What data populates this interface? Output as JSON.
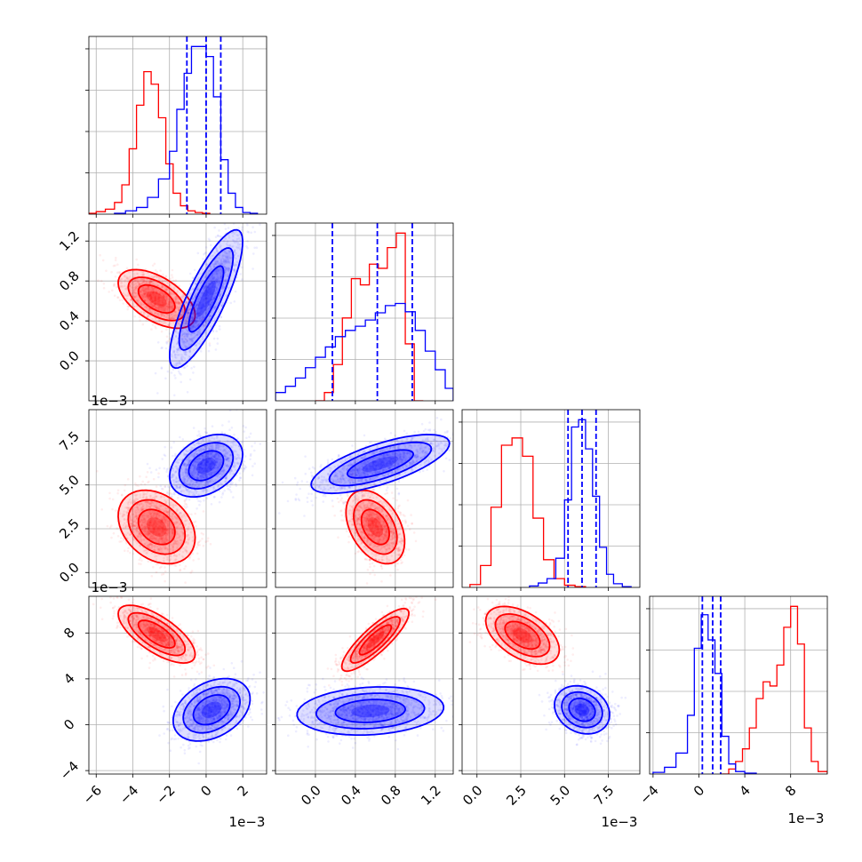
{
  "colors": {
    "series_a": "#ff0000",
    "series_b": "#0000ff"
  },
  "chart_data": {
    "type": "scatter",
    "subtype": "corner-plot",
    "grid": true,
    "offset_labels": {
      "col0_x": "1e−3",
      "col2_x": "1e−3",
      "col3_x": "1e−3",
      "row1_y": "1e−3",
      "row2_y": "1e−3"
    },
    "ranges": [
      [
        -6.4,
        3.3
      ],
      [
        -0.4,
        1.38
      ],
      [
        -0.85,
        9.3
      ],
      [
        -4.3,
        11.2
      ]
    ],
    "tick_labels": {
      "col0_x": [
        {
          "v": -6,
          "t": "−6"
        },
        {
          "v": -4,
          "t": "−4"
        },
        {
          "v": -2,
          "t": "−2"
        },
        {
          "v": 0,
          "t": "0"
        },
        {
          "v": 2,
          "t": "2"
        }
      ],
      "col1_x": [
        {
          "v": 0.0,
          "t": "0.0"
        },
        {
          "v": 0.4,
          "t": "0.4"
        },
        {
          "v": 0.8,
          "t": "0.8"
        },
        {
          "v": 1.2,
          "t": "1.2"
        }
      ],
      "col2_x": [
        {
          "v": 0.0,
          "t": "0.0"
        },
        {
          "v": 2.5,
          "t": "2.5"
        },
        {
          "v": 5.0,
          "t": "5.0"
        },
        {
          "v": 7.5,
          "t": "7.5"
        }
      ],
      "col3_x": [
        {
          "v": -4,
          "t": "−4"
        },
        {
          "v": 0,
          "t": "0"
        },
        {
          "v": 4,
          "t": "4"
        },
        {
          "v": 8,
          "t": "8"
        }
      ],
      "row1_y": [
        {
          "v": 0.0,
          "t": "0.0"
        },
        {
          "v": 0.4,
          "t": "0.4"
        },
        {
          "v": 0.8,
          "t": "0.8"
        },
        {
          "v": 1.2,
          "t": "1.2"
        }
      ],
      "row2_y": [
        {
          "v": 0.0,
          "t": "0.0"
        },
        {
          "v": 2.5,
          "t": "2.5"
        },
        {
          "v": 5.0,
          "t": "5.0"
        },
        {
          "v": 7.5,
          "t": "7.5"
        }
      ],
      "row3_y": [
        {
          "v": -4,
          "t": "−4"
        },
        {
          "v": 0,
          "t": "0"
        },
        {
          "v": 4,
          "t": "4"
        },
        {
          "v": 8,
          "t": "8"
        }
      ]
    },
    "series": [
      {
        "color": "#ff0000",
        "histograms": [
          {
            "edges": [
              -6.4,
              -6.0,
              -5.5,
              -5.0,
              -4.6,
              -4.2,
              -3.8,
              -3.4,
              -3.0,
              -2.6,
              -2.2,
              -1.8,
              -1.4,
              -1.0,
              -0.6,
              -0.2,
              0.2
            ],
            "counts": [
              1,
              3,
              6,
              14,
              35,
              78,
              130,
              170,
              155,
              115,
              60,
              25,
              10,
              4,
              2,
              1
            ]
          },
          {
            "edges": [
              0.0,
              0.09,
              0.18,
              0.27,
              0.36,
              0.45,
              0.54,
              0.63,
              0.72,
              0.81,
              0.9,
              0.99,
              1.08
            ],
            "counts": [
              0,
              8,
              35,
              80,
              118,
              112,
              132,
              128,
              148,
              162,
              55,
              0
            ]
          },
          {
            "edges": [
              -0.4,
              0.2,
              0.8,
              1.4,
              2.0,
              2.6,
              3.2,
              3.8,
              4.4,
              5.0,
              5.6,
              6.2
            ],
            "counts": [
              4,
              30,
              110,
              195,
              205,
              180,
              95,
              38,
              12,
              3,
              1
            ]
          },
          {
            "edges": [
              2.0,
              2.6,
              3.2,
              3.8,
              4.4,
              5.0,
              5.6,
              6.2,
              6.8,
              7.4,
              8.0,
              8.6,
              9.2,
              9.8,
              10.4,
              11.2
            ],
            "counts": [
              0,
              6,
              15,
              30,
              55,
              90,
              110,
              105,
              130,
              175,
              200,
              155,
              55,
              15,
              3
            ]
          }
        ],
        "gaussian_clusters": {
          "x0_x1": {
            "mean": [
              -2.7,
              0.62
            ],
            "sd": [
              1.0,
              0.14
            ],
            "rho": -0.55
          },
          "x0_x2": {
            "mean": [
              -2.7,
              2.6
            ],
            "sd": [
              1.0,
              1.0
            ],
            "rho": -0.3
          },
          "x1_x2": {
            "mean": [
              0.6,
              2.6
            ],
            "sd": [
              0.14,
              1.0
            ],
            "rho": -0.4
          },
          "x0_x3": {
            "mean": [
              -2.7,
              7.9
            ],
            "sd": [
              1.0,
              1.2
            ],
            "rho": -0.7
          },
          "x1_x3": {
            "mean": [
              0.6,
              7.4
            ],
            "sd": [
              0.16,
              1.3
            ],
            "rho": 0.85
          },
          "x2_x3": {
            "mean": [
              2.6,
              7.8
            ],
            "sd": [
              1.0,
              1.2
            ],
            "rho": -0.5
          }
        }
      },
      {
        "color": "#0000ff",
        "quantiles": [
          [
            -1.05,
            0.0,
            0.8
          ],
          [
            0.17,
            0.62,
            0.97
          ],
          [
            5.2,
            6.0,
            6.8
          ],
          [
            0.3,
            1.2,
            1.9
          ]
        ],
        "histograms": [
          {
            "edges": [
              -5.0,
              -4.4,
              -3.8,
              -3.2,
              -2.6,
              -2.0,
              -1.6,
              -1.2,
              -0.8,
              -0.4,
              0.0,
              0.4,
              0.8,
              1.2,
              1.6,
              2.0,
              2.4,
              2.8
            ],
            "counts": [
              1,
              4,
              8,
              20,
              42,
              75,
              125,
              168,
              200,
              200,
              188,
              140,
              65,
              25,
              8,
              2,
              1
            ]
          },
          {
            "edges": [
              -0.4,
              -0.3,
              -0.2,
              -0.1,
              0.0,
              0.1,
              0.2,
              0.3,
              0.4,
              0.5,
              0.6,
              0.7,
              0.8,
              0.9,
              1.0,
              1.1,
              1.2,
              1.3,
              1.38
            ],
            "counts": [
              8,
              14,
              22,
              32,
              42,
              52,
              62,
              68,
              72,
              78,
              85,
              92,
              94,
              86,
              68,
              48,
              30,
              12
            ]
          },
          {
            "edges": [
              3.0,
              3.5,
              4.0,
              4.5,
              5.0,
              5.4,
              5.8,
              6.2,
              6.6,
              7.0,
              7.4,
              7.8,
              8.3,
              8.8
            ],
            "counts": [
              2,
              6,
              12,
              40,
              120,
              220,
              230,
              190,
              125,
              55,
              18,
              5,
              1
            ]
          },
          {
            "edges": [
              -4.0,
              -3.0,
              -2.0,
              -1.0,
              -0.4,
              0.2,
              0.8,
              1.4,
              2.0,
              2.6,
              3.2,
              4.0,
              5.0
            ],
            "counts": [
              2,
              8,
              25,
              70,
              150,
              190,
              160,
              120,
              45,
              12,
              3,
              1
            ]
          }
        ],
        "gaussian_clusters": {
          "x0_x1": {
            "mean": [
              0.0,
              0.62
            ],
            "sd": [
              0.95,
              0.33
            ],
            "rho": 0.82
          },
          "x0_x2": {
            "mean": [
              0.0,
              6.1
            ],
            "sd": [
              0.95,
              0.85
            ],
            "rho": 0.35
          },
          "x1_x2": {
            "mean": [
              0.65,
              6.2
            ],
            "sd": [
              0.33,
              0.8
            ],
            "rho": 0.7
          },
          "x0_x3": {
            "mean": [
              0.3,
              1.3
            ],
            "sd": [
              1.0,
              1.3
            ],
            "rho": 0.35
          },
          "x1_x3": {
            "mean": [
              0.55,
              1.2
            ],
            "sd": [
              0.35,
              1.0
            ],
            "rho": 0.15
          },
          "x2_x3": {
            "mean": [
              6.0,
              1.3
            ],
            "sd": [
              0.75,
              1.0
            ],
            "rho": -0.2
          }
        }
      }
    ]
  }
}
